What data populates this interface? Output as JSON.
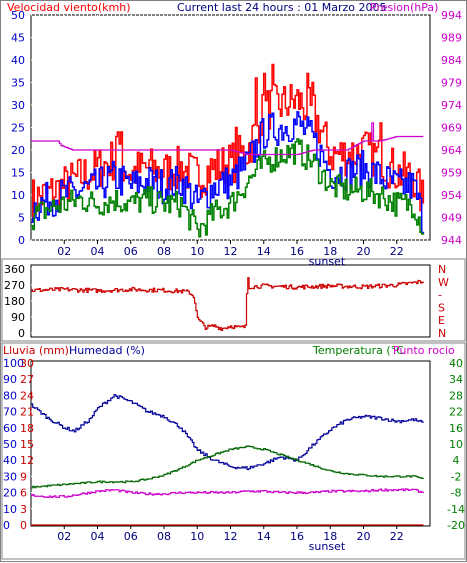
{
  "header": {
    "wind_label": "Velocidad viento(kmh)",
    "title": "Current last 24 hours : 01 Marzo 2005",
    "pressure_label": "Presion(hPa)"
  },
  "bottom_header": {
    "rain_label": "Lluvia (mm)",
    "humidity_label": "Humedad (%)",
    "temp_label": "Temperatura (°C",
    "dew_label": "Punto rocio"
  },
  "colors": {
    "gust": "#ff0000",
    "wind_blue": "#0000ff",
    "wind_green": "#008000",
    "pressure": "#cc00cc",
    "direction": "#cc0000",
    "humidity": "#000099",
    "temperature": "#006600",
    "dewpoint": "#cc00cc",
    "rain": "#cc0000",
    "grid": "#ffffff",
    "plot_bg": "#ffffff"
  },
  "chart_data": [
    {
      "type": "line",
      "name": "wind-chart",
      "sunset_label": "sunset",
      "x_ticks": [
        "02",
        "04",
        "06",
        "08",
        "10",
        "12",
        "14",
        "16",
        "18",
        "20",
        "22"
      ],
      "y_left_ticks": [
        "0",
        "5",
        "10",
        "15",
        "20",
        "25",
        "30",
        "35",
        "40",
        "45",
        "50"
      ],
      "y_right_ticks": [
        "944",
        "949",
        "954",
        "959",
        "964",
        "969",
        "974",
        "979",
        "984",
        "989",
        "994"
      ],
      "ylim": [
        0,
        50
      ],
      "ylim_right": [
        944,
        994
      ],
      "xlim": [
        0,
        24
      ],
      "series": [
        {
          "key": "gust",
          "keyframes": [
            [
              0,
              9
            ],
            [
              1,
              10
            ],
            [
              2,
              12
            ],
            [
              3,
              14
            ],
            [
              4,
              16
            ],
            [
              5,
              18
            ],
            [
              6,
              15
            ],
            [
              7,
              16
            ],
            [
              8,
              15
            ],
            [
              9,
              16
            ],
            [
              10,
              14
            ],
            [
              11,
              16
            ],
            [
              12,
              17
            ],
            [
              13,
              20
            ],
            [
              14,
              29
            ],
            [
              15,
              30
            ],
            [
              16,
              31
            ],
            [
              17,
              28
            ],
            [
              18,
              19
            ],
            [
              19,
              19
            ],
            [
              20,
              20
            ],
            [
              21,
              18
            ],
            [
              22,
              15
            ],
            [
              23,
              14
            ],
            [
              23.6,
              8
            ]
          ],
          "noise": 5,
          "spikes": [
            [
              5.2,
              24
            ],
            [
              5.4,
              24
            ],
            [
              5.1,
              23
            ],
            [
              13.5,
              36
            ],
            [
              14,
              37
            ],
            [
              14.5,
              39
            ],
            [
              16.6,
              37
            ],
            [
              16.9,
              35
            ],
            [
              21,
              26
            ],
            [
              12.3,
              25
            ]
          ]
        },
        {
          "key": "wind_blue",
          "keyframes": [
            [
              0,
              7
            ],
            [
              1,
              9
            ],
            [
              2,
              10
            ],
            [
              3,
              11
            ],
            [
              4,
              12
            ],
            [
              5,
              14
            ],
            [
              6,
              12
            ],
            [
              7,
              13
            ],
            [
              8,
              12
            ],
            [
              9,
              13
            ],
            [
              10,
              8
            ],
            [
              11,
              12
            ],
            [
              12,
              13
            ],
            [
              13,
              17
            ],
            [
              14,
              24
            ],
            [
              15,
              25
            ],
            [
              16,
              26
            ],
            [
              17,
              22
            ],
            [
              18,
              15
            ],
            [
              19,
              15
            ],
            [
              20,
              16
            ],
            [
              21,
              14
            ],
            [
              22,
              12
            ],
            [
              23,
              12
            ],
            [
              23.6,
              4
            ]
          ],
          "noise": 4,
          "spikes": []
        },
        {
          "key": "wind_green",
          "keyframes": [
            [
              0,
              5
            ],
            [
              1,
              7
            ],
            [
              2,
              8
            ],
            [
              3,
              9
            ],
            [
              4,
              8
            ],
            [
              5,
              9
            ],
            [
              6,
              8
            ],
            [
              7,
              9
            ],
            [
              8,
              8
            ],
            [
              9,
              8
            ],
            [
              10,
              2
            ],
            [
              11,
              6
            ],
            [
              12,
              8
            ],
            [
              13,
              13
            ],
            [
              14,
              17
            ],
            [
              15,
              19
            ],
            [
              16,
              20
            ],
            [
              17,
              17
            ],
            [
              18,
              12
            ],
            [
              19,
              11
            ],
            [
              20,
              11
            ],
            [
              21,
              10
            ],
            [
              22,
              8
            ],
            [
              23,
              8
            ],
            [
              23.6,
              2
            ]
          ],
          "noise": 3,
          "spikes": []
        },
        {
          "key": "pressure",
          "keyframes": [
            [
              0,
              966
            ],
            [
              1.6,
              966
            ],
            [
              1.8,
              965
            ],
            [
              2.5,
              964
            ],
            [
              4,
              964
            ],
            [
              6,
              964
            ],
            [
              8,
              964
            ],
            [
              10,
              964
            ],
            [
              12,
              964
            ],
            [
              13,
              963
            ],
            [
              14,
              963
            ],
            [
              15,
              963
            ],
            [
              16,
              963
            ],
            [
              17,
              964
            ],
            [
              18,
              964
            ],
            [
              19,
              964
            ],
            [
              20,
              966
            ],
            [
              21,
              966
            ],
            [
              22,
              967
            ],
            [
              23.6,
              967
            ]
          ],
          "noise": 0,
          "spikes": [
            [
              20.5,
              970
            ]
          ]
        }
      ]
    },
    {
      "type": "line",
      "name": "direction-chart",
      "y_left_ticks": [
        "0",
        "90",
        "180",
        "270",
        "360"
      ],
      "y_right_ticks": [
        "N",
        "E",
        "S",
        "-",
        "W",
        "N"
      ],
      "ylim": [
        0,
        360
      ],
      "xlim": [
        0,
        24
      ],
      "series": [
        {
          "key": "direction",
          "keyframes": [
            [
              0,
              240
            ],
            [
              2,
              245
            ],
            [
              4,
              238
            ],
            [
              6,
              245
            ],
            [
              8,
              240
            ],
            [
              9,
              235
            ],
            [
              9.5,
              230
            ],
            [
              9.8,
              200
            ],
            [
              10,
              80
            ],
            [
              10.5,
              30
            ],
            [
              11,
              40
            ],
            [
              11.5,
              25
            ],
            [
              12,
              40
            ],
            [
              12.5,
              30
            ],
            [
              12.9,
              35
            ],
            [
              13,
              350
            ],
            [
              13.1,
              260
            ],
            [
              14,
              265
            ],
            [
              16,
              258
            ],
            [
              18,
              265
            ],
            [
              20,
              260
            ],
            [
              22,
              270
            ],
            [
              23.6,
              290
            ]
          ],
          "noise": 12,
          "spikes": []
        }
      ]
    },
    {
      "type": "line",
      "name": "weather-chart",
      "sunset_label": "sunset",
      "x_ticks": [
        "02",
        "04",
        "06",
        "08",
        "10",
        "12",
        "14",
        "16",
        "18",
        "20",
        "22"
      ],
      "rain_ticks": [
        "0",
        "10",
        "20",
        "30",
        "40",
        "50",
        "60",
        "70",
        "80",
        "90",
        "100"
      ],
      "humidity_ticks": [
        "0",
        "3",
        "6",
        "9",
        "12",
        "15",
        "18",
        "21",
        "24",
        "27",
        "30"
      ],
      "temp_ticks": [
        "-20",
        "-14",
        "-8",
        "-2",
        "4",
        "10",
        "16",
        "22",
        "28",
        "34",
        "40"
      ],
      "ylim": [
        0,
        100
      ],
      "ylim_temp": [
        -20,
        40
      ],
      "xlim": [
        0,
        24
      ],
      "series": [
        {
          "key": "humidity",
          "keyframes": [
            [
              0,
              74
            ],
            [
              1,
              66
            ],
            [
              2,
              60
            ],
            [
              2.6,
              58
            ],
            [
              3.5,
              65
            ],
            [
              4,
              72
            ],
            [
              5,
              80
            ],
            [
              6,
              76
            ],
            [
              7,
              70
            ],
            [
              8,
              67
            ],
            [
              9,
              60
            ],
            [
              10,
              46
            ],
            [
              11,
              40
            ],
            [
              12,
              36
            ],
            [
              13,
              35
            ],
            [
              14,
              38
            ],
            [
              15,
              42
            ],
            [
              16,
              40
            ],
            [
              17,
              50
            ],
            [
              18,
              59
            ],
            [
              19,
              65
            ],
            [
              20,
              67
            ],
            [
              21,
              66
            ],
            [
              22,
              64
            ],
            [
              23,
              65
            ],
            [
              23.6,
              63
            ]
          ],
          "noise": 1,
          "spikes": []
        },
        {
          "key": "temperature",
          "keyframes": [
            [
              0,
              -6
            ],
            [
              1,
              -5.5
            ],
            [
              2,
              -5
            ],
            [
              3,
              -4.5
            ],
            [
              4,
              -4
            ],
            [
              5,
              -4
            ],
            [
              6,
              -4
            ],
            [
              7,
              -3
            ],
            [
              8,
              -1.5
            ],
            [
              9,
              1
            ],
            [
              10,
              4
            ],
            [
              11,
              6
            ],
            [
              12,
              8
            ],
            [
              13,
              9
            ],
            [
              14,
              8
            ],
            [
              15,
              6
            ],
            [
              16,
              4
            ],
            [
              17,
              2
            ],
            [
              18,
              0
            ],
            [
              19,
              -1
            ],
            [
              20,
              -1.5
            ],
            [
              21,
              -2
            ],
            [
              22,
              -2
            ],
            [
              23,
              -2
            ],
            [
              23.6,
              -3
            ]
          ],
          "noise": 0.3,
          "spikes": []
        },
        {
          "key": "dewpoint",
          "keyframes": [
            [
              0,
              -9
            ],
            [
              1,
              -9.5
            ],
            [
              2,
              -9.5
            ],
            [
              3,
              -8.5
            ],
            [
              4,
              -7.5
            ],
            [
              5,
              -7
            ],
            [
              6,
              -8
            ],
            [
              7,
              -8.5
            ],
            [
              8,
              -8.5
            ],
            [
              9,
              -8
            ],
            [
              10,
              -8
            ],
            [
              11,
              -8
            ],
            [
              12,
              -8
            ],
            [
              13,
              -7.5
            ],
            [
              14,
              -7.5
            ],
            [
              15,
              -8
            ],
            [
              16,
              -8
            ],
            [
              17,
              -8
            ],
            [
              18,
              -7.5
            ],
            [
              19,
              -7.5
            ],
            [
              20,
              -7.5
            ],
            [
              21,
              -7
            ],
            [
              22,
              -7
            ],
            [
              23,
              -7
            ],
            [
              23.6,
              -8
            ]
          ],
          "noise": 0.4,
          "spikes": []
        },
        {
          "key": "rain",
          "keyframes": [
            [
              0,
              0
            ],
            [
              23.6,
              0
            ]
          ],
          "noise": 0,
          "spikes": []
        }
      ]
    }
  ]
}
